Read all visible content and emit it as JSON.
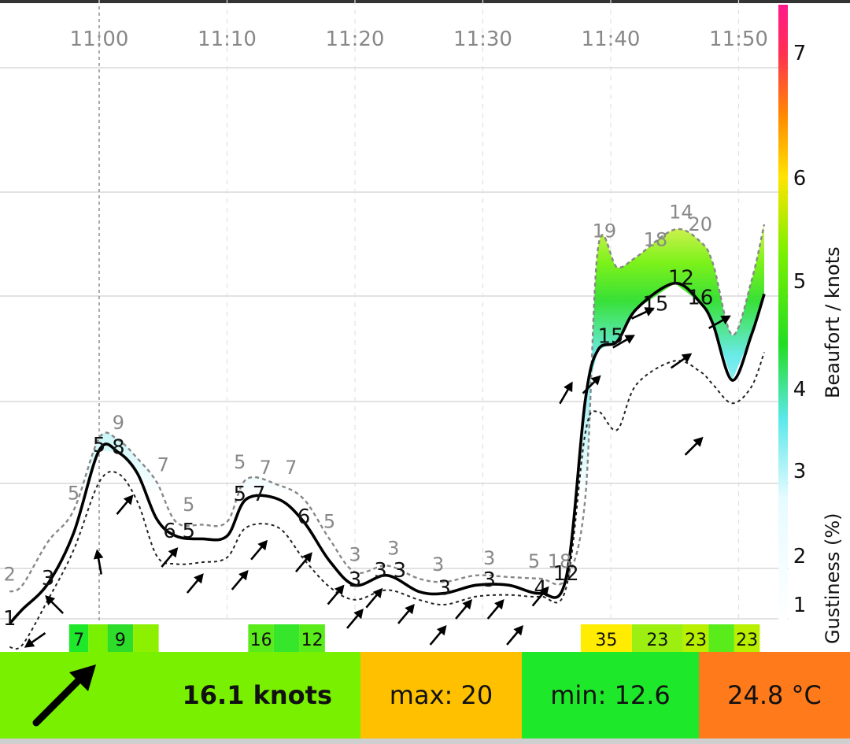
{
  "chart_data": {
    "type": "line",
    "x_unit": "time",
    "x_ticks": [
      "11:00",
      "11:10",
      "11:20",
      "11:30",
      "11:40",
      "11:50"
    ],
    "x_range": [
      "10:53",
      "11:53"
    ],
    "y_unit": "knots",
    "y_range": [
      0,
      28
    ],
    "right_axis_label": "Beaufort / knots",
    "right_axis_label2": "Gustiness (%)",
    "beaufort_scale": [
      {
        "label": "1",
        "knots": 1
      },
      {
        "label": "2",
        "knots": 4
      },
      {
        "label": "3",
        "knots": 7
      },
      {
        "label": "4",
        "knots": 11
      },
      {
        "label": "5",
        "knots": 16
      },
      {
        "label": "6",
        "knots": 22
      },
      {
        "label": "7",
        "knots": 28
      }
    ],
    "gustiness_ticks": [
      "1",
      "2",
      "3",
      "4",
      "5",
      "6",
      "7"
    ],
    "series": [
      {
        "name": "gust",
        "style": "dashed",
        "points": [
          {
            "t": 0,
            "v": 1.8
          },
          {
            "t": 1,
            "v": 2.2
          },
          {
            "t": 3,
            "v": 4.5
          },
          {
            "t": 5,
            "v": 5.6
          },
          {
            "t": 7,
            "v": 8.6
          },
          {
            "t": 8.5,
            "v": 8.5
          },
          {
            "t": 10,
            "v": 7.6
          },
          {
            "t": 11.5,
            "v": 6.6
          },
          {
            "t": 13,
            "v": 5.2
          },
          {
            "t": 15,
            "v": 5.1
          },
          {
            "t": 17,
            "v": 5.2
          },
          {
            "t": 18.5,
            "v": 6.7
          },
          {
            "t": 21,
            "v": 6.5
          },
          {
            "t": 23,
            "v": 6.0
          },
          {
            "t": 25,
            "v": 4.6
          },
          {
            "t": 27,
            "v": 3.0
          },
          {
            "t": 29.5,
            "v": 3.4
          },
          {
            "t": 32,
            "v": 2.6
          },
          {
            "t": 34,
            "v": 2.4
          },
          {
            "t": 36.5,
            "v": 2.8
          },
          {
            "t": 39,
            "v": 2.7
          },
          {
            "t": 41.5,
            "v": 2.6
          },
          {
            "t": 43.5,
            "v": 2.6
          },
          {
            "t": 45,
            "v": 6.0
          },
          {
            "t": 46,
            "v": 17.9
          },
          {
            "t": 47.5,
            "v": 16.8
          },
          {
            "t": 49,
            "v": 17.4
          },
          {
            "t": 52,
            "v": 19.0
          },
          {
            "t": 54,
            "v": 18.3
          },
          {
            "t": 55,
            "v": 17.0
          },
          {
            "t": 56.5,
            "v": 13.5
          },
          {
            "t": 58,
            "v": 16.0
          },
          {
            "t": 59,
            "v": 19.3
          }
        ]
      },
      {
        "name": "average",
        "style": "solid",
        "points": [
          {
            "t": 0,
            "v": 0.2
          },
          {
            "t": 1,
            "v": 0.8
          },
          {
            "t": 3,
            "v": 2.3
          },
          {
            "t": 5,
            "v": 4.8
          },
          {
            "t": 7,
            "v": 8.0
          },
          {
            "t": 8.5,
            "v": 7.9
          },
          {
            "t": 10,
            "v": 6.9
          },
          {
            "t": 11.5,
            "v": 5.3
          },
          {
            "t": 13,
            "v": 4.7
          },
          {
            "t": 15,
            "v": 4.6
          },
          {
            "t": 17,
            "v": 4.7
          },
          {
            "t": 18.5,
            "v": 6.0
          },
          {
            "t": 21,
            "v": 6.0
          },
          {
            "t": 23,
            "v": 5.2
          },
          {
            "t": 25,
            "v": 3.7
          },
          {
            "t": 27,
            "v": 2.2
          },
          {
            "t": 29.5,
            "v": 2.8
          },
          {
            "t": 32,
            "v": 1.8
          },
          {
            "t": 34,
            "v": 1.7
          },
          {
            "t": 36.5,
            "v": 2.2
          },
          {
            "t": 39,
            "v": 2.2
          },
          {
            "t": 41.5,
            "v": 1.7
          },
          {
            "t": 43.5,
            "v": 2.6
          },
          {
            "t": 45,
            "v": 10.4
          },
          {
            "t": 46,
            "v": 12.8
          },
          {
            "t": 47.5,
            "v": 13.2
          },
          {
            "t": 49,
            "v": 14.7
          },
          {
            "t": 52,
            "v": 15.9
          },
          {
            "t": 54,
            "v": 15.0
          },
          {
            "t": 55,
            "v": 14.0
          },
          {
            "t": 56.5,
            "v": 11.4
          },
          {
            "t": 58,
            "v": 13.5
          },
          {
            "t": 59,
            "v": 15.4
          }
        ]
      },
      {
        "name": "lull",
        "style": "dashed",
        "points": [
          {
            "t": 0,
            "v": -0.8
          },
          {
            "t": 1,
            "v": -0.7
          },
          {
            "t": 3,
            "v": 1.3
          },
          {
            "t": 5,
            "v": 4.2
          },
          {
            "t": 7,
            "v": 6.6
          },
          {
            "t": 8.5,
            "v": 6.9
          },
          {
            "t": 10,
            "v": 5.9
          },
          {
            "t": 11.5,
            "v": 4.0
          },
          {
            "t": 13,
            "v": 3.5
          },
          {
            "t": 15,
            "v": 3.6
          },
          {
            "t": 17,
            "v": 3.9
          },
          {
            "t": 18.5,
            "v": 5.0
          },
          {
            "t": 21,
            "v": 5.0
          },
          {
            "t": 23,
            "v": 3.8
          },
          {
            "t": 25,
            "v": 2.1
          },
          {
            "t": 27,
            "v": 1.3
          },
          {
            "t": 29.5,
            "v": 1.9
          },
          {
            "t": 32,
            "v": 1.3
          },
          {
            "t": 34,
            "v": 1.0
          },
          {
            "t": 36.5,
            "v": 1.5
          },
          {
            "t": 39,
            "v": 1.6
          },
          {
            "t": 41.5,
            "v": 1.5
          },
          {
            "t": 43.5,
            "v": 2.0
          },
          {
            "t": 45,
            "v": 8.8
          },
          {
            "t": 46,
            "v": 9.9
          },
          {
            "t": 47.5,
            "v": 9.0
          },
          {
            "t": 49,
            "v": 11.2
          },
          {
            "t": 52,
            "v": 12.3
          },
          {
            "t": 54,
            "v": 11.8
          },
          {
            "t": 55,
            "v": 11.2
          },
          {
            "t": 56.5,
            "v": 10.3
          },
          {
            "t": 58,
            "v": 11.1
          },
          {
            "t": 59,
            "v": 12.7
          }
        ]
      }
    ],
    "labels_gust": [
      {
        "t": 0,
        "v": "2"
      },
      {
        "t": 5,
        "v": "5"
      },
      {
        "t": 8.5,
        "v": "9"
      },
      {
        "t": 12,
        "v": "7"
      },
      {
        "t": 14,
        "v": "5"
      },
      {
        "t": 18,
        "v": "5"
      },
      {
        "t": 20,
        "v": "7"
      },
      {
        "t": 22,
        "v": "7"
      },
      {
        "t": 25,
        "v": "5"
      },
      {
        "t": 27,
        "v": "3"
      },
      {
        "t": 30,
        "v": "3"
      },
      {
        "t": 33.5,
        "v": "3"
      },
      {
        "t": 37.5,
        "v": "3"
      },
      {
        "t": 41,
        "v": "5"
      },
      {
        "t": 43,
        "v": "18"
      },
      {
        "t": 46.5,
        "v": "19"
      },
      {
        "t": 50.5,
        "v": "18"
      },
      {
        "t": 52.5,
        "v": "14"
      },
      {
        "t": 54,
        "v": "20"
      }
    ],
    "labels_avg": [
      {
        "t": 0,
        "v": "1"
      },
      {
        "t": 3,
        "v": "3"
      },
      {
        "t": 7,
        "v": "5"
      },
      {
        "t": 8.5,
        "v": "8"
      },
      {
        "t": 12.5,
        "v": "6"
      },
      {
        "t": 14,
        "v": "5"
      },
      {
        "t": 18,
        "v": "5"
      },
      {
        "t": 19.5,
        "v": "7"
      },
      {
        "t": 23,
        "v": "6"
      },
      {
        "t": 27,
        "v": "3"
      },
      {
        "t": 29,
        "v": "3"
      },
      {
        "t": 30.5,
        "v": "3"
      },
      {
        "t": 34,
        "v": "3"
      },
      {
        "t": 37.5,
        "v": "3"
      },
      {
        "t": 41.5,
        "v": "4"
      },
      {
        "t": 43.5,
        "v": "12"
      },
      {
        "t": 47,
        "v": "15"
      },
      {
        "t": 50.5,
        "v": "15"
      },
      {
        "t": 52.5,
        "v": "12"
      },
      {
        "t": 54,
        "v": "16"
      }
    ],
    "direction_arrows": [
      {
        "t": 2,
        "v": -0.5,
        "deg": 235
      },
      {
        "t": 3.5,
        "v": 1,
        "deg": 315
      },
      {
        "t": 7,
        "v": 3.6,
        "deg": -10
      },
      {
        "t": 9,
        "v": 5.8,
        "deg": 40
      },
      {
        "t": 12.5,
        "v": 3.9,
        "deg": 40
      },
      {
        "t": 14.5,
        "v": 2.3,
        "deg": 40
      },
      {
        "t": 18,
        "v": 2.5,
        "deg": 40
      },
      {
        "t": 19.5,
        "v": 4.2,
        "deg": 40
      },
      {
        "t": 23,
        "v": 3.6,
        "deg": 40
      },
      {
        "t": 25.5,
        "v": 1.6,
        "deg": 40
      },
      {
        "t": 27,
        "v": 0.4,
        "deg": 40
      },
      {
        "t": 28.5,
        "v": 1.4,
        "deg": 40
      },
      {
        "t": 31,
        "v": 0.6,
        "deg": 40
      },
      {
        "t": 33.5,
        "v": -0.3,
        "deg": 40
      },
      {
        "t": 35.5,
        "v": 0.8,
        "deg": 40
      },
      {
        "t": 38,
        "v": 0.8,
        "deg": 40
      },
      {
        "t": 39.5,
        "v": -0.3,
        "deg": 40
      },
      {
        "t": 41.5,
        "v": 1.5,
        "deg": 40
      },
      {
        "t": 43.5,
        "v": 10.8,
        "deg": 30
      },
      {
        "t": 45.5,
        "v": 11.2,
        "deg": 45
      },
      {
        "t": 48,
        "v": 13.2,
        "deg": 60
      },
      {
        "t": 49.5,
        "v": 14.5,
        "deg": 65
      },
      {
        "t": 52.5,
        "v": 12.3,
        "deg": 55
      },
      {
        "t": 53.5,
        "v": 8.2,
        "deg": 45
      },
      {
        "t": 55.5,
        "v": 14.1,
        "deg": 60
      }
    ],
    "gust_boxes": [
      {
        "from": 6.5,
        "to": 8,
        "color": "#1ee82a",
        "label": "7"
      },
      {
        "from": 8,
        "to": 9.5,
        "color": "#78f000",
        "label": ""
      },
      {
        "from": 9.5,
        "to": 11.5,
        "color": "#2edc2a",
        "label": "9"
      },
      {
        "from": 11.5,
        "to": 13.5,
        "color": "#8cf000",
        "label": ""
      },
      {
        "from": 20.5,
        "to": 22.5,
        "color": "#5aeb1a",
        "label": "16"
      },
      {
        "from": 22.5,
        "to": 24.5,
        "color": "#36e62a",
        "label": ""
      },
      {
        "from": 24.5,
        "to": 26.5,
        "color": "#5aeb1a",
        "label": "12"
      },
      {
        "from": 46.5,
        "to": 50.5,
        "color": "#ffec00",
        "label": "35"
      },
      {
        "from": 50.5,
        "to": 54.5,
        "color": "#9cef10",
        "label": "23"
      },
      {
        "from": 54.5,
        "to": 56.5,
        "color": "#b8f000",
        "label": "23"
      },
      {
        "from": 56.5,
        "to": 58.5,
        "color": "#5aeb1a",
        "label": ""
      },
      {
        "from": 58.5,
        "to": 60.5,
        "color": "#b8f000",
        "label": "23"
      }
    ],
    "gridlines": true
  },
  "summary": {
    "speed": "16.1 knots",
    "max": "max: 20",
    "min": "min: 12.6",
    "temperature": "24.8 °C",
    "speed_color": "#78f000",
    "max_color": "#ffc000",
    "min_color": "#1ee82a",
    "temp_color": "#ff7a1a",
    "direction_icon": "arrow-northeast-icon"
  }
}
